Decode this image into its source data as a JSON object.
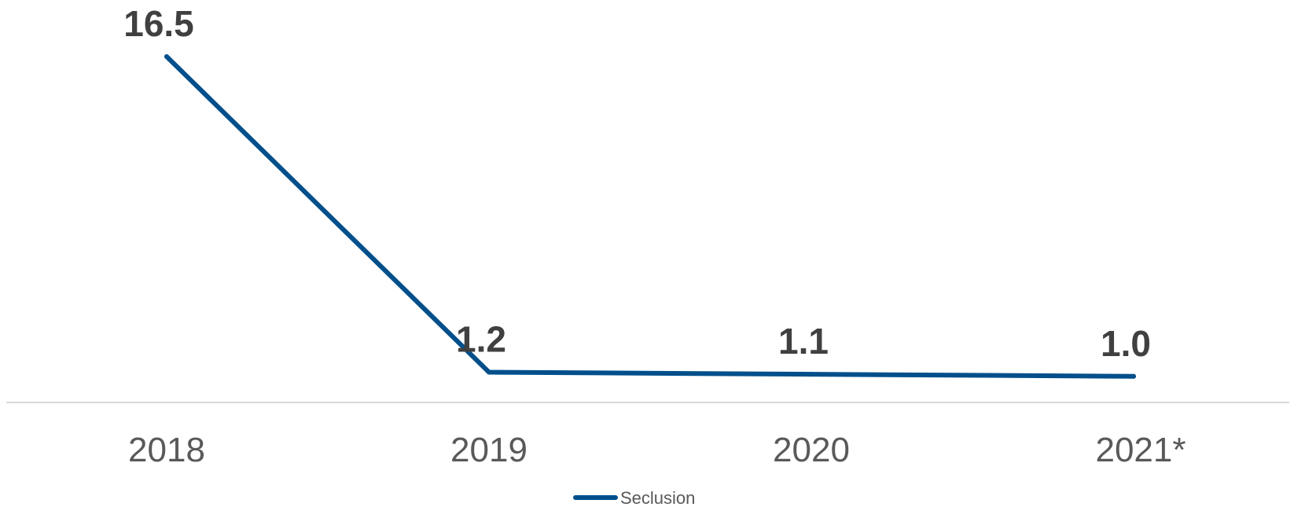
{
  "chart_data": {
    "type": "line",
    "categories": [
      "2018",
      "2019",
      "2020",
      "2021*"
    ],
    "series": [
      {
        "name": "Seclusion",
        "values": [
          16.5,
          1.2,
          1.1,
          1.0
        ],
        "data_labels": [
          "16.5",
          "1.2",
          "1.1",
          "1.0"
        ],
        "color": "#004F8B"
      }
    ],
    "title": "",
    "xlabel": "",
    "ylabel": "",
    "ylim": [
      0,
      16.5
    ],
    "grid": false,
    "legend": "bottom-center",
    "axis_color": "#D9D9D9",
    "label_color": "#404040",
    "tick_color": "#595959"
  }
}
